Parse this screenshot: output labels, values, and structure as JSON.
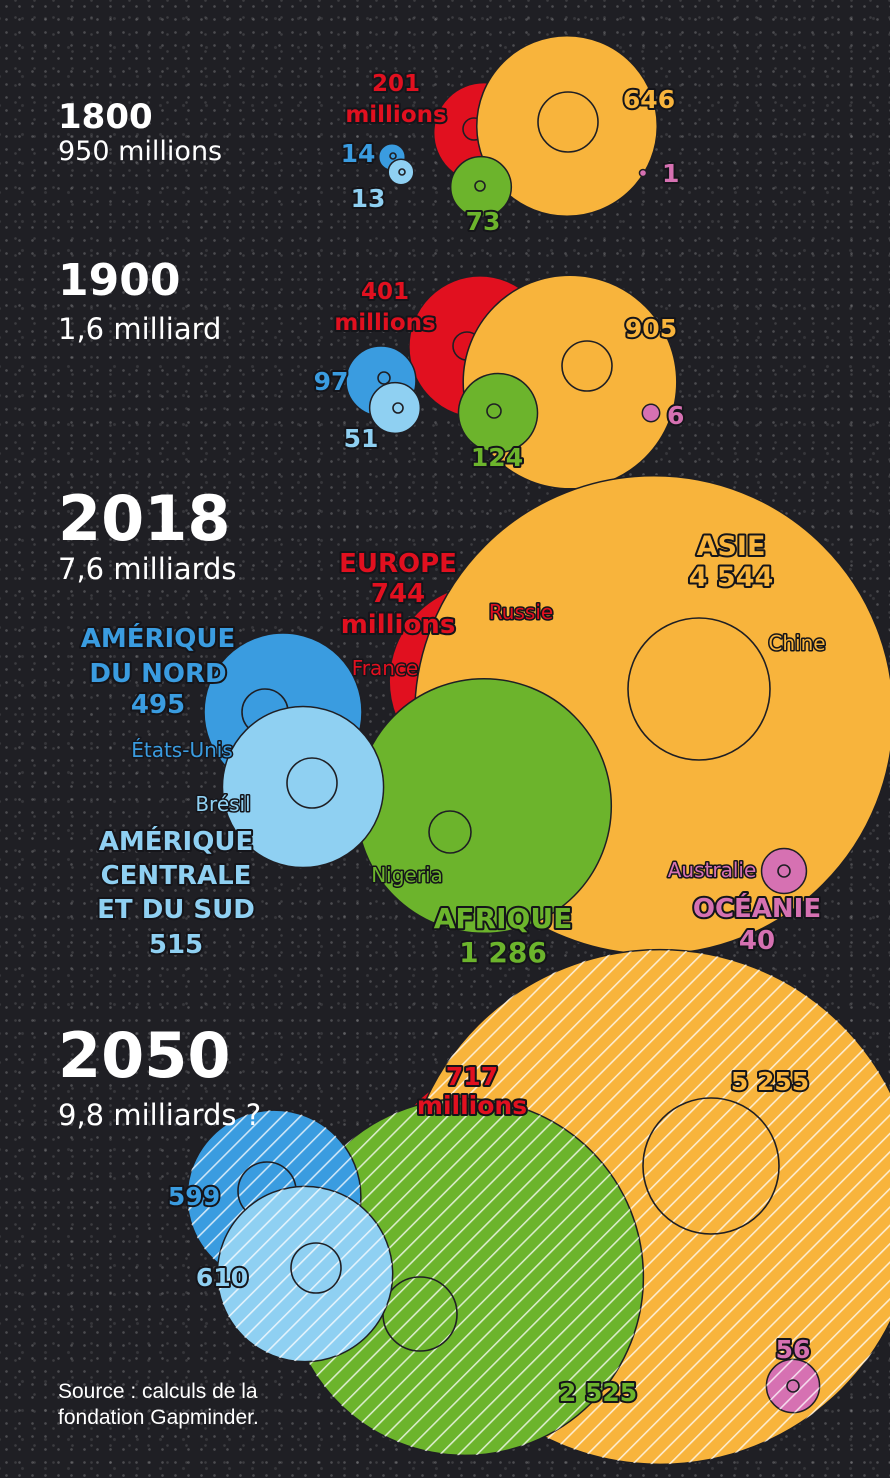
{
  "colors": {
    "europe": "#e1101f",
    "asie": "#f8b43c",
    "afrique": "#6cb42c",
    "amerique_nord": "#3a9ce0",
    "amerique_sud": "#8fd0f2",
    "oceanie": "#d671b2",
    "background": "#1f1f24",
    "text": "#ffffff"
  },
  "source": {
    "line1": "Source : calculs de la",
    "line2": "fondation Gapminder."
  },
  "chart_data": [
    {
      "type": "bubble",
      "year": "1800",
      "total": "950 millions",
      "series": [
        {
          "region": "Europe",
          "value": 201,
          "label": [
            "201",
            "millions"
          ]
        },
        {
          "region": "Asie",
          "value": 646,
          "label": [
            "646"
          ]
        },
        {
          "region": "Afrique",
          "value": 73,
          "label": [
            "73"
          ]
        },
        {
          "region": "Amérique du Nord",
          "value": 14,
          "label": [
            "14"
          ]
        },
        {
          "region": "Amérique centrale et du Sud",
          "value": 13,
          "label": [
            "13"
          ]
        },
        {
          "region": "Océanie",
          "value": 1,
          "label": [
            "1"
          ]
        }
      ]
    },
    {
      "type": "bubble",
      "year": "1900",
      "total": "1,6 milliard",
      "series": [
        {
          "region": "Europe",
          "value": 401,
          "label": [
            "401",
            "millions"
          ]
        },
        {
          "region": "Asie",
          "value": 905,
          "label": [
            "905"
          ]
        },
        {
          "region": "Afrique",
          "value": 124,
          "label": [
            "124"
          ]
        },
        {
          "region": "Amérique du Nord",
          "value": 97,
          "label": [
            "97"
          ]
        },
        {
          "region": "Amérique centrale et du Sud",
          "value": 51,
          "label": [
            "51"
          ]
        },
        {
          "region": "Océanie",
          "value": 6,
          "label": [
            "6"
          ]
        }
      ]
    },
    {
      "type": "bubble",
      "year": "2018",
      "total": "7,6 milliards",
      "series": [
        {
          "region": "Europe",
          "value": 744,
          "label": [
            "EUROPE",
            "744",
            "millions"
          ]
        },
        {
          "region": "Asie",
          "value": 4544,
          "label": [
            "ASIE",
            "4 544"
          ]
        },
        {
          "region": "Afrique",
          "value": 1286,
          "label": [
            "AFRIQUE",
            "1 286"
          ]
        },
        {
          "region": "Amérique du Nord",
          "value": 495,
          "label": [
            "AMÉRIQUE",
            "DU NORD",
            "495"
          ]
        },
        {
          "region": "Amérique centrale et du Sud",
          "value": 515,
          "label": [
            "AMÉRIQUE",
            "CENTRALE",
            "ET DU SUD",
            "515"
          ]
        },
        {
          "region": "Océanie",
          "value": 40,
          "label": [
            "OCÉANIE",
            "40"
          ]
        }
      ],
      "country_labels": [
        "Russie",
        "France",
        "Chine",
        "États-Unis",
        "Brésil",
        "Nigeria",
        "Australie"
      ]
    },
    {
      "type": "bubble",
      "year": "2050",
      "total": "9,8 milliards ?",
      "series": [
        {
          "region": "Europe",
          "value": 717,
          "label": [
            "717",
            "millions"
          ]
        },
        {
          "region": "Asie",
          "value": 5255,
          "label": [
            "5 255"
          ]
        },
        {
          "region": "Afrique",
          "value": 2525,
          "label": [
            "2 525"
          ]
        },
        {
          "region": "Amérique du Nord",
          "value": 599,
          "label": [
            "599"
          ]
        },
        {
          "region": "Amérique centrale et du Sud",
          "value": 610,
          "label": [
            "610"
          ]
        },
        {
          "region": "Océanie",
          "value": 56,
          "label": [
            "56"
          ]
        }
      ]
    }
  ]
}
